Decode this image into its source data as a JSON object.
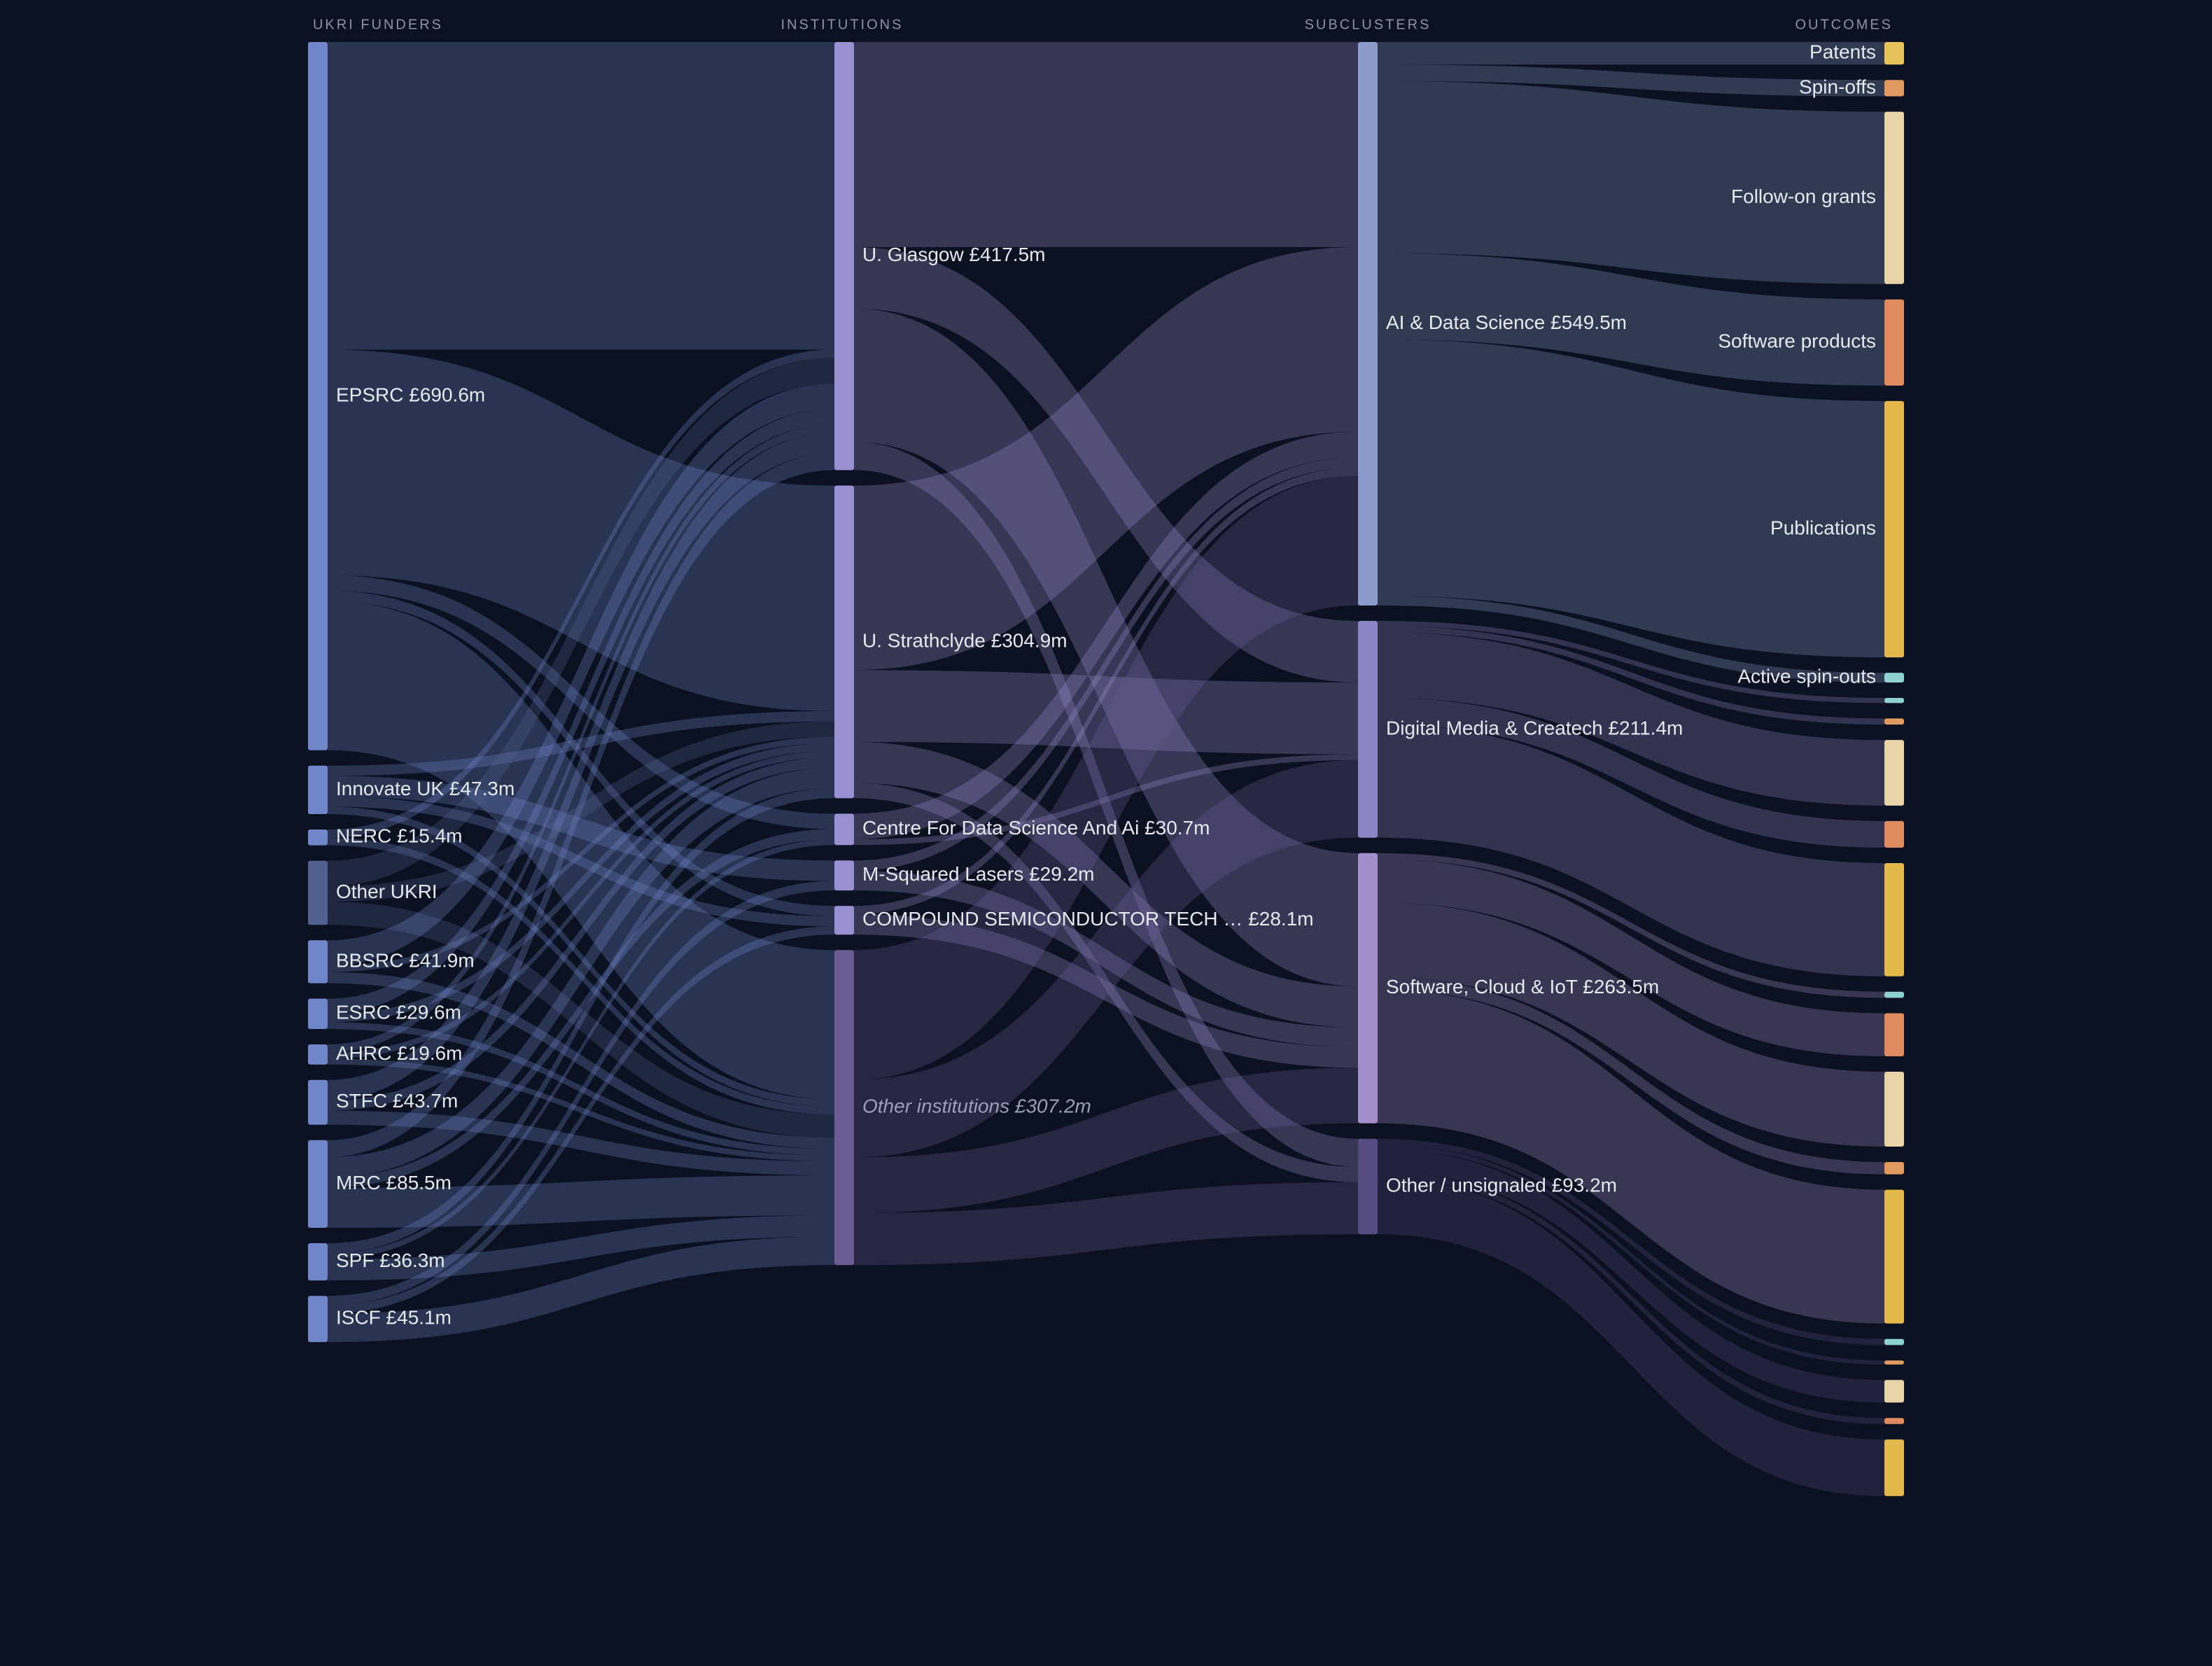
{
  "chart_data": {
    "type": "sankey",
    "columns": [
      {
        "title": "UKRI FUNDERS",
        "nodes": [
          {
            "label": "EPSRC £690.6m",
            "value": 690.6,
            "color": "#6f87c9"
          },
          {
            "label": "Innovate UK £47.3m",
            "value": 47.3,
            "color": "#6f87c9"
          },
          {
            "label": "NERC £15.4m",
            "value": 15.4,
            "color": "#6f87c9"
          },
          {
            "label": "Other UKRI",
            "value": 62.6,
            "color": "#52608f"
          },
          {
            "label": "BBSRC £41.9m",
            "value": 41.9,
            "color": "#6f87c9"
          },
          {
            "label": "ESRC £29.6m",
            "value": 29.6,
            "color": "#6f87c9"
          },
          {
            "label": "AHRC £19.6m",
            "value": 19.6,
            "color": "#6f87c9"
          },
          {
            "label": "STFC £43.7m",
            "value": 43.7,
            "color": "#6f87c9"
          },
          {
            "label": "MRC £85.5m",
            "value": 85.5,
            "color": "#6f87c9"
          },
          {
            "label": "SPF £36.3m",
            "value": 36.3,
            "color": "#6f87c9"
          },
          {
            "label": "ISCF £45.1m",
            "value": 45.1,
            "color": "#6f87c9"
          }
        ]
      },
      {
        "title": "INSTITUTIONS",
        "nodes": [
          {
            "label": "U. Glasgow £417.5m",
            "value": 417.5,
            "color": "#9a8fd0"
          },
          {
            "label": "U. Strathclyde £304.9m",
            "value": 304.9,
            "color": "#9a8fd0"
          },
          {
            "label": "Centre For Data Science And Ai £30.7m",
            "value": 30.7,
            "color": "#9a8fd0"
          },
          {
            "label": "M-Squared Lasers £29.2m",
            "value": 29.2,
            "color": "#9a8fd0"
          },
          {
            "label": "COMPOUND SEMICONDUCTOR TECH … £28.1m",
            "value": 28.1,
            "color": "#9a8fd0"
          },
          {
            "label": "Other institutions £307.2m",
            "value": 307.2,
            "color": "#6b5d94",
            "italic": true
          }
        ]
      },
      {
        "title": "SUBCLUSTERS",
        "nodes": [
          {
            "label": "AI & Data Science £549.5m",
            "value": 549.5,
            "color": "#8b9ccb"
          },
          {
            "label": "Digital Media & Createch £211.4m",
            "value": 211.4,
            "color": "#8a85c3"
          },
          {
            "label": "Software, Cloud & IoT £263.5m",
            "value": 263.5,
            "color": "#a38fcb"
          },
          {
            "label": "Other / unsignaled £93.2m",
            "value": 93.2,
            "color": "#574c82"
          }
        ]
      },
      {
        "title": "OUTCOMES",
        "nodes": [
          {
            "label": "Patents",
            "value": 22,
            "color": "#e8c25a"
          },
          {
            "label": "Spin-offs",
            "value": 16,
            "color": "#e09a5f"
          },
          {
            "label": "Follow-on grants",
            "value": 168,
            "color": "#e8d4a8"
          },
          {
            "label": "Software products",
            "value": 84,
            "color": "#e08a5f"
          },
          {
            "label": "Publications",
            "value": 250,
            "color": "#e3b94e"
          },
          {
            "label": "Active spin-outs",
            "value": 9.5,
            "color": "#8fd0d0"
          },
          {
            "label": null,
            "value": 5,
            "color": "#8fd0d0"
          },
          {
            "label": null,
            "value": 6,
            "color": "#e09a5f"
          },
          {
            "label": null,
            "value": 64,
            "color": "#e8d4a8"
          },
          {
            "label": null,
            "value": 26,
            "color": "#e08a5f"
          },
          {
            "label": null,
            "value": 110.4,
            "color": "#e3b94e"
          },
          {
            "label": null,
            "value": 6,
            "color": "#8fd0d0"
          },
          {
            "label": null,
            "value": 42,
            "color": "#e08a5f"
          },
          {
            "label": null,
            "value": 73,
            "color": "#e8d4a8"
          },
          {
            "label": null,
            "value": 12,
            "color": "#e09a5f"
          },
          {
            "label": null,
            "value": 130.5,
            "color": "#e3b94e"
          },
          {
            "label": null,
            "value": 6,
            "color": "#8fd0d0"
          },
          {
            "label": null,
            "value": 4,
            "color": "#e09a5f"
          },
          {
            "label": null,
            "value": 22,
            "color": "#e8d4a8"
          },
          {
            "label": null,
            "value": 6,
            "color": "#e08a5f"
          },
          {
            "label": null,
            "value": 55.2,
            "color": "#e3b94e"
          }
        ]
      }
    ],
    "links": [
      {
        "source": [
          0,
          0
        ],
        "target": [
          1,
          0
        ],
        "value": 300
      },
      {
        "source": [
          0,
          0
        ],
        "target": [
          1,
          1
        ],
        "value": 220
      },
      {
        "source": [
          0,
          0
        ],
        "target": [
          1,
          2
        ],
        "value": 15
      },
      {
        "source": [
          0,
          0
        ],
        "target": [
          1,
          4
        ],
        "value": 10
      },
      {
        "source": [
          0,
          0
        ],
        "target": [
          1,
          5
        ],
        "value": 145.6
      },
      {
        "source": [
          0,
          1
        ],
        "target": [
          1,
          1
        ],
        "value": 10
      },
      {
        "source": [
          0,
          1
        ],
        "target": [
          1,
          3
        ],
        "value": 20
      },
      {
        "source": [
          0,
          1
        ],
        "target": [
          1,
          4
        ],
        "value": 10
      },
      {
        "source": [
          0,
          1
        ],
        "target": [
          1,
          5
        ],
        "value": 7.3
      },
      {
        "source": [
          0,
          2
        ],
        "target": [
          1,
          0
        ],
        "value": 8
      },
      {
        "source": [
          0,
          2
        ],
        "target": [
          1,
          5
        ],
        "value": 7.4
      },
      {
        "source": [
          0,
          3
        ],
        "target": [
          1,
          0
        ],
        "value": 25
      },
      {
        "source": [
          0,
          3
        ],
        "target": [
          1,
          1
        ],
        "value": 15
      },
      {
        "source": [
          0,
          3
        ],
        "target": [
          1,
          5
        ],
        "value": 22.6
      },
      {
        "source": [
          0,
          4
        ],
        "target": [
          1,
          0
        ],
        "value": 25
      },
      {
        "source": [
          0,
          4
        ],
        "target": [
          1,
          1
        ],
        "value": 6
      },
      {
        "source": [
          0,
          4
        ],
        "target": [
          1,
          5
        ],
        "value": 10.9
      },
      {
        "source": [
          0,
          5
        ],
        "target": [
          1,
          0
        ],
        "value": 15
      },
      {
        "source": [
          0,
          5
        ],
        "target": [
          1,
          1
        ],
        "value": 8
      },
      {
        "source": [
          0,
          5
        ],
        "target": [
          1,
          5
        ],
        "value": 6.6
      },
      {
        "source": [
          0,
          6
        ],
        "target": [
          1,
          0
        ],
        "value": 8
      },
      {
        "source": [
          0,
          6
        ],
        "target": [
          1,
          1
        ],
        "value": 6
      },
      {
        "source": [
          0,
          6
        ],
        "target": [
          1,
          5
        ],
        "value": 5.6
      },
      {
        "source": [
          0,
          7
        ],
        "target": [
          1,
          0
        ],
        "value": 20
      },
      {
        "source": [
          0,
          7
        ],
        "target": [
          1,
          1
        ],
        "value": 10
      },
      {
        "source": [
          0,
          7
        ],
        "target": [
          1,
          5
        ],
        "value": 13.7
      },
      {
        "source": [
          0,
          8
        ],
        "target": [
          1,
          0
        ],
        "value": 16.5
      },
      {
        "source": [
          0,
          8
        ],
        "target": [
          1,
          1
        ],
        "value": 20
      },
      {
        "source": [
          0,
          8
        ],
        "target": [
          1,
          2
        ],
        "value": 10
      },
      {
        "source": [
          0,
          8
        ],
        "target": [
          1,
          5
        ],
        "value": 39
      },
      {
        "source": [
          0,
          9
        ],
        "target": [
          1,
          1
        ],
        "value": 9.9
      },
      {
        "source": [
          0,
          9
        ],
        "target": [
          1,
          2
        ],
        "value": 5.7
      },
      {
        "source": [
          0,
          9
        ],
        "target": [
          1,
          5
        ],
        "value": 20.7
      },
      {
        "source": [
          0,
          10
        ],
        "target": [
          1,
          3
        ],
        "value": 9.2
      },
      {
        "source": [
          0,
          10
        ],
        "target": [
          1,
          4
        ],
        "value": 8.1
      },
      {
        "source": [
          0,
          10
        ],
        "target": [
          1,
          5
        ],
        "value": 27.8
      },
      {
        "source": [
          1,
          0
        ],
        "target": [
          2,
          0
        ],
        "value": 200
      },
      {
        "source": [
          1,
          0
        ],
        "target": [
          2,
          1
        ],
        "value": 60
      },
      {
        "source": [
          1,
          0
        ],
        "target": [
          2,
          2
        ],
        "value": 130
      },
      {
        "source": [
          1,
          0
        ],
        "target": [
          2,
          3
        ],
        "value": 27.5
      },
      {
        "source": [
          1,
          1
        ],
        "target": [
          2,
          0
        ],
        "value": 180
      },
      {
        "source": [
          1,
          1
        ],
        "target": [
          2,
          1
        ],
        "value": 70
      },
      {
        "source": [
          1,
          1
        ],
        "target": [
          2,
          2
        ],
        "value": 40
      },
      {
        "source": [
          1,
          1
        ],
        "target": [
          2,
          3
        ],
        "value": 14.9
      },
      {
        "source": [
          1,
          2
        ],
        "target": [
          2,
          0
        ],
        "value": 25
      },
      {
        "source": [
          1,
          2
        ],
        "target": [
          2,
          1
        ],
        "value": 5.7
      },
      {
        "source": [
          1,
          3
        ],
        "target": [
          2,
          0
        ],
        "value": 10
      },
      {
        "source": [
          1,
          3
        ],
        "target": [
          2,
          2
        ],
        "value": 19.2
      },
      {
        "source": [
          1,
          4
        ],
        "target": [
          2,
          0
        ],
        "value": 8
      },
      {
        "source": [
          1,
          4
        ],
        "target": [
          2,
          2
        ],
        "value": 20.1
      },
      {
        "source": [
          1,
          5
        ],
        "target": [
          2,
          0
        ],
        "value": 126.5
      },
      {
        "source": [
          1,
          5
        ],
        "target": [
          2,
          1
        ],
        "value": 75.7
      },
      {
        "source": [
          1,
          5
        ],
        "target": [
          2,
          2
        ],
        "value": 54.2
      },
      {
        "source": [
          1,
          5
        ],
        "target": [
          2,
          3
        ],
        "value": 50.8
      },
      {
        "source": [
          2,
          0
        ],
        "target": [
          3,
          0
        ],
        "value": 22
      },
      {
        "source": [
          2,
          0
        ],
        "target": [
          3,
          1
        ],
        "value": 16
      },
      {
        "source": [
          2,
          0
        ],
        "target": [
          3,
          2
        ],
        "value": 168
      },
      {
        "source": [
          2,
          0
        ],
        "target": [
          3,
          3
        ],
        "value": 84
      },
      {
        "source": [
          2,
          0
        ],
        "target": [
          3,
          4
        ],
        "value": 250
      },
      {
        "source": [
          2,
          0
        ],
        "target": [
          3,
          5
        ],
        "value": 9.5
      },
      {
        "source": [
          2,
          1
        ],
        "target": [
          3,
          6
        ],
        "value": 5
      },
      {
        "source": [
          2,
          1
        ],
        "target": [
          3,
          7
        ],
        "value": 6
      },
      {
        "source": [
          2,
          1
        ],
        "target": [
          3,
          8
        ],
        "value": 64
      },
      {
        "source": [
          2,
          1
        ],
        "target": [
          3,
          9
        ],
        "value": 26
      },
      {
        "source": [
          2,
          1
        ],
        "target": [
          3,
          10
        ],
        "value": 110.4
      },
      {
        "source": [
          2,
          2
        ],
        "target": [
          3,
          11
        ],
        "value": 6
      },
      {
        "source": [
          2,
          2
        ],
        "target": [
          3,
          12
        ],
        "value": 42
      },
      {
        "source": [
          2,
          2
        ],
        "target": [
          3,
          13
        ],
        "value": 73
      },
      {
        "source": [
          2,
          2
        ],
        "target": [
          3,
          14
        ],
        "value": 12
      },
      {
        "source": [
          2,
          2
        ],
        "target": [
          3,
          15
        ],
        "value": 130.5
      },
      {
        "source": [
          2,
          3
        ],
        "target": [
          3,
          16
        ],
        "value": 6
      },
      {
        "source": [
          2,
          3
        ],
        "target": [
          3,
          17
        ],
        "value": 4
      },
      {
        "source": [
          2,
          3
        ],
        "target": [
          3,
          18
        ],
        "value": 22
      },
      {
        "source": [
          2,
          3
        ],
        "target": [
          3,
          19
        ],
        "value": 6
      },
      {
        "source": [
          2,
          3
        ],
        "target": [
          3,
          20
        ],
        "value": 55.2
      }
    ]
  }
}
